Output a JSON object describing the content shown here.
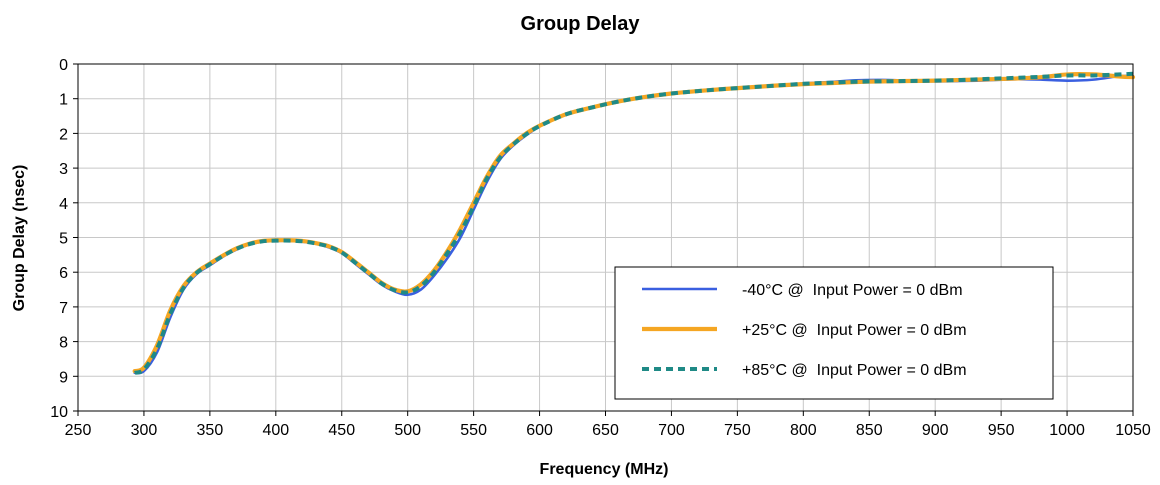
{
  "chart_data": {
    "type": "line",
    "title": "Group Delay",
    "xlabel": "Frequency (MHz)",
    "ylabel": "Group Delay (nsec)",
    "xlim": [
      250,
      1050
    ],
    "ylim": [
      0,
      10
    ],
    "y_inverted": true,
    "x_ticks": [
      250,
      300,
      350,
      400,
      450,
      500,
      550,
      600,
      650,
      700,
      750,
      800,
      850,
      900,
      950,
      1000,
      1050
    ],
    "y_ticks": [
      0,
      1,
      2,
      3,
      4,
      5,
      6,
      7,
      8,
      9,
      10
    ],
    "grid": true,
    "legend_position": "bottom-right",
    "series": [
      {
        "name": "-40°C @  Input Power = 0 dBm",
        "color": "#3a5fe0",
        "style": "solid",
        "x": [
          293,
          300,
          310,
          320,
          330,
          340,
          350,
          360,
          370,
          380,
          390,
          400,
          410,
          420,
          430,
          440,
          450,
          460,
          470,
          480,
          490,
          500,
          510,
          520,
          530,
          540,
          550,
          560,
          570,
          580,
          590,
          600,
          620,
          640,
          660,
          680,
          700,
          720,
          740,
          760,
          780,
          800,
          820,
          840,
          860,
          880,
          900,
          920,
          940,
          960,
          980,
          1000,
          1020,
          1040,
          1050
        ],
        "y": [
          8.9,
          8.85,
          8.3,
          7.3,
          6.5,
          6.05,
          5.8,
          5.55,
          5.35,
          5.2,
          5.12,
          5.1,
          5.1,
          5.12,
          5.18,
          5.28,
          5.45,
          5.75,
          6.05,
          6.35,
          6.55,
          6.65,
          6.5,
          6.1,
          5.6,
          5.0,
          4.2,
          3.4,
          2.75,
          2.35,
          2.05,
          1.8,
          1.45,
          1.25,
          1.08,
          0.95,
          0.85,
          0.78,
          0.72,
          0.66,
          0.61,
          0.56,
          0.52,
          0.47,
          0.46,
          0.48,
          0.5,
          0.49,
          0.47,
          0.44,
          0.45,
          0.48,
          0.45,
          0.35,
          0.35
        ]
      },
      {
        "name": "+25°C @  Input Power = 0 dBm",
        "color": "#f5a623",
        "style": "solid",
        "x": [
          293,
          300,
          310,
          320,
          330,
          340,
          350,
          360,
          370,
          380,
          390,
          400,
          410,
          420,
          430,
          440,
          450,
          460,
          470,
          480,
          490,
          500,
          510,
          520,
          530,
          540,
          550,
          560,
          570,
          580,
          590,
          600,
          620,
          640,
          660,
          680,
          700,
          720,
          740,
          760,
          780,
          800,
          820,
          840,
          860,
          880,
          900,
          920,
          940,
          960,
          980,
          1000,
          1020,
          1040,
          1050
        ],
        "y": [
          8.85,
          8.75,
          8.1,
          7.1,
          6.4,
          6.0,
          5.75,
          5.52,
          5.32,
          5.18,
          5.1,
          5.08,
          5.08,
          5.1,
          5.16,
          5.25,
          5.42,
          5.7,
          6.0,
          6.3,
          6.5,
          6.55,
          6.35,
          5.95,
          5.4,
          4.75,
          4.0,
          3.25,
          2.65,
          2.3,
          2.0,
          1.78,
          1.45,
          1.25,
          1.08,
          0.95,
          0.85,
          0.78,
          0.72,
          0.67,
          0.62,
          0.58,
          0.55,
          0.52,
          0.5,
          0.49,
          0.48,
          0.46,
          0.44,
          0.42,
          0.38,
          0.3,
          0.3,
          0.36,
          0.38
        ]
      },
      {
        "name": "+85°C @  Input Power = 0 dBm",
        "color": "#1f8a86",
        "style": "dashed",
        "x": [
          293,
          300,
          310,
          320,
          330,
          340,
          350,
          360,
          370,
          380,
          390,
          400,
          410,
          420,
          430,
          440,
          450,
          460,
          470,
          480,
          490,
          500,
          510,
          520,
          530,
          540,
          550,
          560,
          570,
          580,
          590,
          600,
          620,
          640,
          660,
          680,
          700,
          720,
          740,
          760,
          780,
          800,
          820,
          840,
          860,
          880,
          900,
          920,
          940,
          960,
          980,
          1000,
          1020,
          1040,
          1050
        ],
        "y": [
          8.9,
          8.8,
          8.2,
          7.2,
          6.45,
          6.02,
          5.77,
          5.53,
          5.33,
          5.19,
          5.11,
          5.09,
          5.09,
          5.11,
          5.17,
          5.26,
          5.43,
          5.72,
          6.02,
          6.32,
          6.52,
          6.58,
          6.4,
          6.0,
          5.45,
          4.85,
          4.1,
          3.3,
          2.7,
          2.32,
          2.02,
          1.79,
          1.45,
          1.25,
          1.08,
          0.95,
          0.85,
          0.78,
          0.72,
          0.67,
          0.62,
          0.57,
          0.54,
          0.51,
          0.5,
          0.49,
          0.48,
          0.46,
          0.43,
          0.4,
          0.37,
          0.33,
          0.33,
          0.3,
          0.28
        ]
      }
    ]
  }
}
